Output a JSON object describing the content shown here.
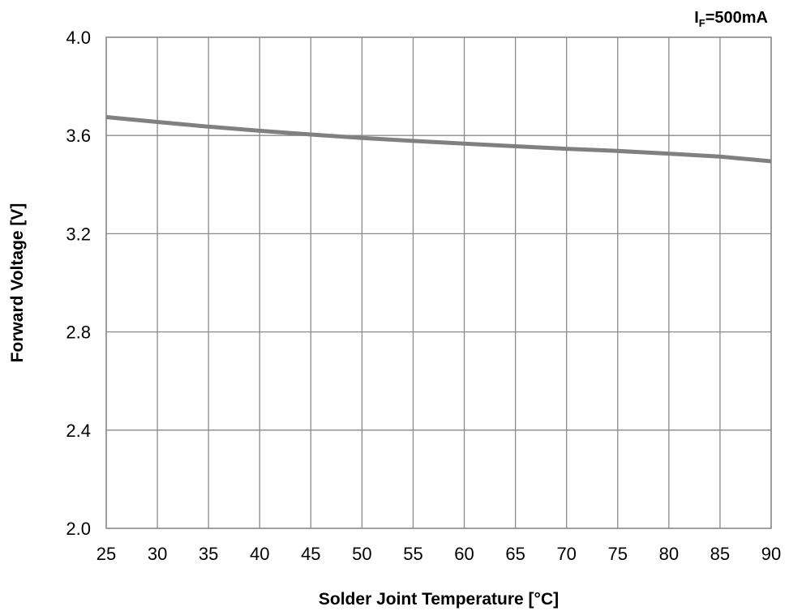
{
  "chart_data": {
    "type": "line",
    "condition_label": {
      "main": "I",
      "sub": "F",
      "rest": "=500mA"
    },
    "xlabel": "Solder Joint Temperature [°C]",
    "ylabel": "Forward Voltage [V]",
    "xlim": [
      25,
      90
    ],
    "ylim": [
      2.0,
      4.0
    ],
    "x_ticks": [
      "25",
      "30",
      "35",
      "40",
      "45",
      "50",
      "55",
      "60",
      "65",
      "70",
      "75",
      "80",
      "85",
      "90"
    ],
    "y_ticks": [
      "2.0",
      "2.4",
      "2.8",
      "3.2",
      "3.6",
      "4.0"
    ],
    "grid": true,
    "series_color": "#808080",
    "series": [
      {
        "x": [
          25,
          30,
          35,
          40,
          45,
          50,
          55,
          60,
          65,
          70,
          75,
          80,
          85,
          90
        ],
        "values": [
          3.675,
          3.655,
          3.636,
          3.619,
          3.604,
          3.59,
          3.578,
          3.567,
          3.556,
          3.546,
          3.537,
          3.526,
          3.514,
          3.495
        ]
      }
    ]
  }
}
